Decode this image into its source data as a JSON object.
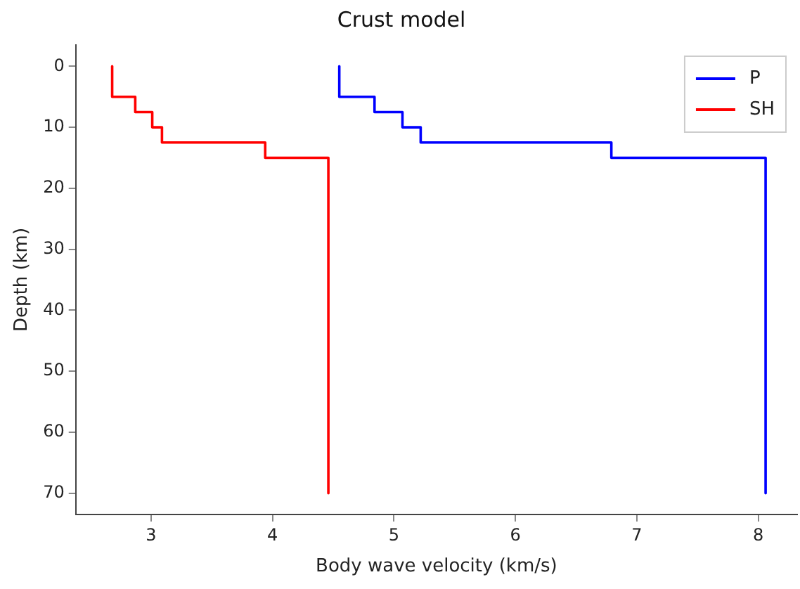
{
  "chart_data": {
    "type": "line",
    "title": "Crust model",
    "xlabel": "Body wave velocity (km/s)",
    "ylabel": "Depth (km)",
    "series": [
      {
        "name": "P",
        "color": "#0000ff",
        "x": [
          4.55,
          4.55,
          4.84,
          4.84,
          5.07,
          5.07,
          5.22,
          5.22,
          6.79,
          6.79,
          8.06,
          8.06
        ],
        "values": [
          0,
          5,
          5,
          7.5,
          7.5,
          10,
          10,
          12.5,
          12.5,
          15,
          15,
          70
        ]
      },
      {
        "name": "SH",
        "color": "#ff0000",
        "x": [
          2.68,
          2.68,
          2.87,
          2.87,
          3.01,
          3.01,
          3.09,
          3.09,
          3.94,
          3.94,
          4.46,
          4.46
        ],
        "values": [
          0,
          5,
          5,
          7.5,
          7.5,
          10,
          10,
          12.5,
          12.5,
          15,
          15,
          70
        ]
      }
    ],
    "xlim": [
      2.38,
      8.32
    ],
    "xticks": [
      3,
      4,
      5,
      6,
      7,
      8
    ],
    "ylim": [
      73.5,
      -3.5
    ],
    "yticks": [
      0,
      10,
      20,
      30,
      40,
      50,
      60,
      70
    ],
    "grid": false,
    "legend": "top right",
    "marker": "none",
    "line_style": "solid"
  }
}
